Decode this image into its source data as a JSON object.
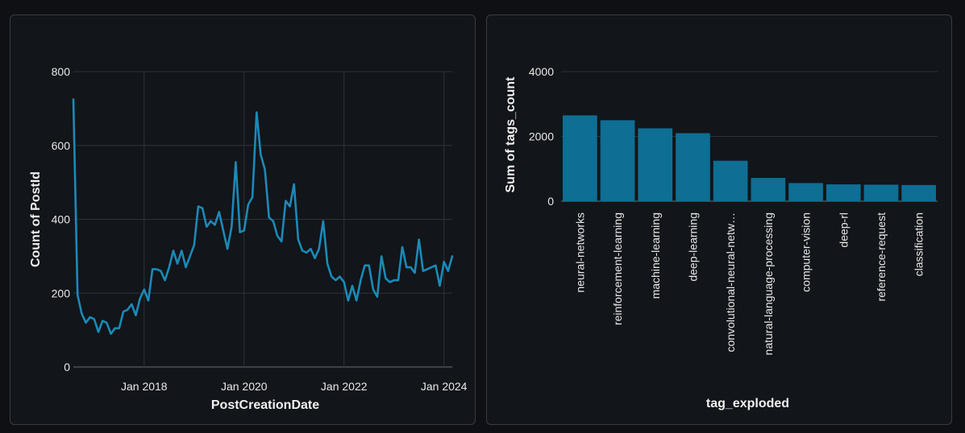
{
  "chart_data": [
    {
      "type": "line",
      "xlabel": "PostCreationDate",
      "ylabel": "Count of PostId",
      "ylim": [
        0,
        800
      ],
      "xlim": [
        "2016-08",
        "2024-03"
      ],
      "yticks": [
        0,
        200,
        400,
        600,
        800
      ],
      "xticks": [
        "2018-01",
        "2020-01",
        "2022-01",
        "2024-01"
      ],
      "xtick_labels": [
        "Jan 2018",
        "Jan 2020",
        "Jan 2022",
        "Jan 2024"
      ],
      "grid": true,
      "color": "#1a8ab8",
      "x": [
        "2016-08",
        "2016-09",
        "2016-10",
        "2016-11",
        "2016-12",
        "2017-01",
        "2017-02",
        "2017-03",
        "2017-04",
        "2017-05",
        "2017-06",
        "2017-07",
        "2017-08",
        "2017-09",
        "2017-10",
        "2017-11",
        "2017-12",
        "2018-01",
        "2018-02",
        "2018-03",
        "2018-04",
        "2018-05",
        "2018-06",
        "2018-07",
        "2018-08",
        "2018-09",
        "2018-10",
        "2018-11",
        "2018-12",
        "2019-01",
        "2019-02",
        "2019-03",
        "2019-04",
        "2019-05",
        "2019-06",
        "2019-07",
        "2019-08",
        "2019-09",
        "2019-10",
        "2019-11",
        "2019-12",
        "2020-01",
        "2020-02",
        "2020-03",
        "2020-04",
        "2020-05",
        "2020-06",
        "2020-07",
        "2020-08",
        "2020-09",
        "2020-10",
        "2020-11",
        "2020-12",
        "2021-01",
        "2021-02",
        "2021-03",
        "2021-04",
        "2021-05",
        "2021-06",
        "2021-07",
        "2021-08",
        "2021-09",
        "2021-10",
        "2021-11",
        "2021-12",
        "2022-01",
        "2022-02",
        "2022-03",
        "2022-04",
        "2022-05",
        "2022-06",
        "2022-07",
        "2022-08",
        "2022-09",
        "2022-10",
        "2022-11",
        "2022-12",
        "2023-01",
        "2023-02",
        "2023-03",
        "2023-04",
        "2023-05",
        "2023-06",
        "2023-07",
        "2023-08",
        "2023-09",
        "2023-10",
        "2023-11",
        "2023-12",
        "2024-01",
        "2024-02",
        "2024-03"
      ],
      "values": [
        725,
        195,
        145,
        120,
        135,
        130,
        95,
        125,
        120,
        90,
        105,
        105,
        150,
        155,
        170,
        140,
        185,
        210,
        180,
        265,
        265,
        260,
        235,
        270,
        315,
        280,
        315,
        270,
        300,
        330,
        435,
        430,
        380,
        395,
        385,
        420,
        370,
        320,
        380,
        555,
        365,
        370,
        440,
        460,
        690,
        575,
        535,
        405,
        395,
        355,
        340,
        450,
        435,
        495,
        345,
        315,
        310,
        320,
        295,
        320,
        395,
        280,
        245,
        235,
        245,
        230,
        180,
        220,
        180,
        235,
        275,
        275,
        210,
        190,
        300,
        240,
        230,
        235,
        235,
        325,
        270,
        270,
        255,
        345,
        260,
        265,
        270,
        275,
        220,
        285,
        260,
        300
      ]
    },
    {
      "type": "bar",
      "xlabel": "tag_exploded",
      "ylabel": "Sum of tags_count",
      "ylim": [
        0,
        4000
      ],
      "yticks": [
        0,
        2000,
        4000
      ],
      "grid": true,
      "color": "#0f6e93",
      "categories": [
        "neural-networks",
        "reinforcement-learning",
        "machine-learning",
        "deep-learning",
        "convolutional-neural-netw…",
        "natural-language-processing",
        "computer-vision",
        "deep-rl",
        "reference-request",
        "classification"
      ],
      "values": [
        2650,
        2500,
        2250,
        2100,
        1250,
        720,
        560,
        520,
        510,
        500
      ]
    }
  ]
}
